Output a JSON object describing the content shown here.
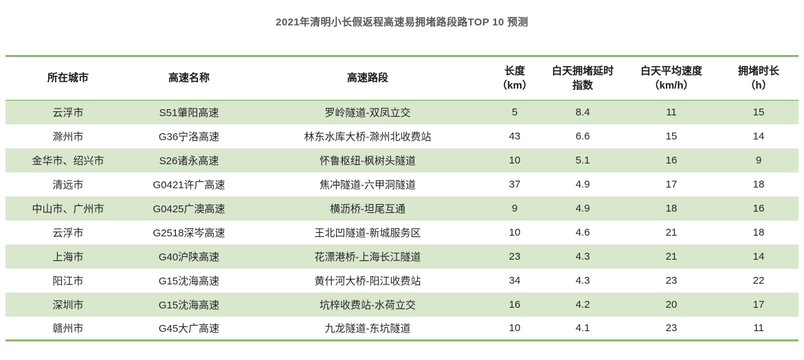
{
  "chart_data": {
    "type": "table",
    "title": "2021年清明小长假返程高速易拥堵路段路TOP 10 预测",
    "columns": [
      {
        "key": "city",
        "line1": "所在城市",
        "line2": ""
      },
      {
        "key": "highway",
        "line1": "高速名称",
        "line2": ""
      },
      {
        "key": "section",
        "line1": "高速路段",
        "line2": ""
      },
      {
        "key": "length_km",
        "line1": "长度",
        "line2": "（km）"
      },
      {
        "key": "delay_index",
        "line1": "白天拥堵延时",
        "line2": "指数"
      },
      {
        "key": "avg_speed",
        "line1": "白天平均速度",
        "line2": "（km/h）"
      },
      {
        "key": "duration_h",
        "line1": "拥堵时长",
        "line2": "（h）"
      }
    ],
    "rows": [
      {
        "city": "云浮市",
        "highway": "S51肇阳高速",
        "section": "罗岭隧道-双凤立交",
        "length_km": "5",
        "delay_index": "8.4",
        "avg_speed": "11",
        "duration_h": "15"
      },
      {
        "city": "滁州市",
        "highway": "G36宁洛高速",
        "section": "林东水库大桥-滁州北收费站",
        "length_km": "43",
        "delay_index": "6.6",
        "avg_speed": "15",
        "duration_h": "14"
      },
      {
        "city": "金华市、绍兴市",
        "highway": "S26诸永高速",
        "section": "怀鲁枢纽-枫树头隧道",
        "length_km": "10",
        "delay_index": "5.1",
        "avg_speed": "16",
        "duration_h": "9"
      },
      {
        "city": "清远市",
        "highway": "G0421许广高速",
        "section": "焦冲隧道-六甲洞隧道",
        "length_km": "37",
        "delay_index": "4.9",
        "avg_speed": "17",
        "duration_h": "18"
      },
      {
        "city": "中山市、广州市",
        "highway": "G0425广澳高速",
        "section": "横沥桥-坦尾互通",
        "length_km": "9",
        "delay_index": "4.9",
        "avg_speed": "18",
        "duration_h": "16"
      },
      {
        "city": "云浮市",
        "highway": "G2518深岑高速",
        "section": "王北凹隧道-新城服务区",
        "length_km": "10",
        "delay_index": "4.6",
        "avg_speed": "21",
        "duration_h": "18"
      },
      {
        "city": "上海市",
        "highway": "G40沪陕高速",
        "section": "花漂港桥-上海长江隧道",
        "length_km": "23",
        "delay_index": "4.3",
        "avg_speed": "21",
        "duration_h": "14"
      },
      {
        "city": "阳江市",
        "highway": "G15沈海高速",
        "section": "黄什河大桥-阳江收费站",
        "length_km": "34",
        "delay_index": "4.3",
        "avg_speed": "23",
        "duration_h": "22"
      },
      {
        "city": "深圳市",
        "highway": "G15沈海高速",
        "section": "坑梓收费站-水荷立交",
        "length_km": "16",
        "delay_index": "4.2",
        "avg_speed": "20",
        "duration_h": "17"
      },
      {
        "city": "赣州市",
        "highway": "G45大广高速",
        "section": "九龙隧道-东坑隧道",
        "length_km": "10",
        "delay_index": "4.1",
        "avg_speed": "23",
        "duration_h": "11"
      }
    ]
  },
  "colors": {
    "stripe_green": "#d9e7cd",
    "border_green": "#8fb873",
    "header_separator_green": "#a9ca8e",
    "title_text": "#595959",
    "body_text": "#262626"
  }
}
